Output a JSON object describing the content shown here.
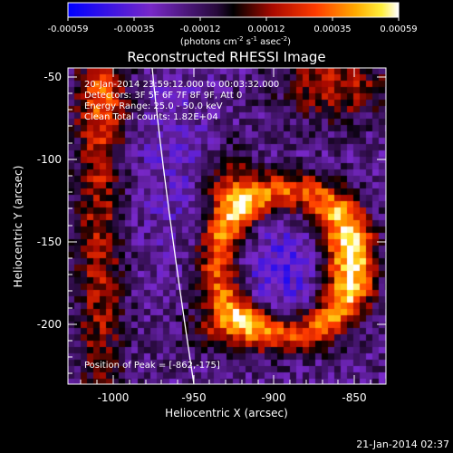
{
  "colorbar": {
    "ticks": [
      "-0.00059",
      "-0.00035",
      "-0.00012",
      "0.00012",
      "0.00035",
      "0.00059"
    ],
    "units_prefix": "(photons cm",
    "units_sup1": "-2",
    "units_mid": " s",
    "units_sup2": "-1",
    "units_mid2": " asec",
    "units_sup3": "-2",
    "units_suffix": ")"
  },
  "title": "Reconstructed RHESSI Image",
  "annotations": {
    "time_range": "20-Jan-2014 23:59:12.000 to 00:03:32.000",
    "detectors": "Detectors: 3F 5F 6F 7F 8F 9F, Att 0",
    "energy": "Energy Range: 25.0 - 50.0 keV",
    "clean": "Clean    Total counts: 1.82E+04",
    "peak": "Position of Peak = [-862,-175]"
  },
  "axes": {
    "xlabel": "Heliocentric X (arcsec)",
    "ylabel": "Heliocentric Y (arcsec)",
    "xticks": [
      "-1000",
      "-950",
      "-900",
      "-850"
    ],
    "yticks": [
      "-50",
      "-100",
      "-150",
      "-200"
    ]
  },
  "timestamp": "21-Jan-2014 02:37",
  "colors": {
    "background": "#000000",
    "limb": "#ffffff"
  }
}
